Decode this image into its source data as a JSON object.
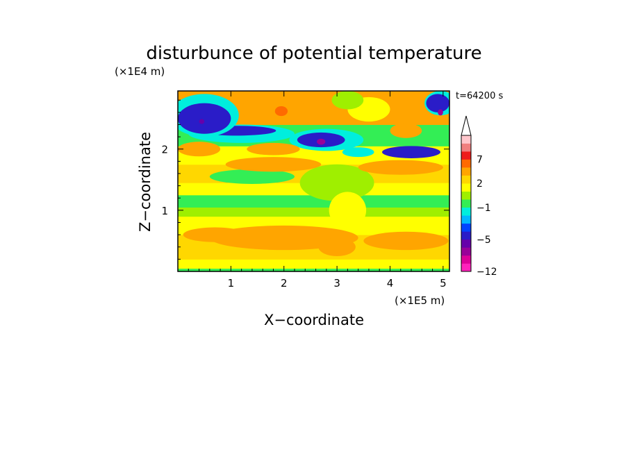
{
  "chart_data": {
    "type": "heatmap",
    "title": "disturbunce of potential temperature",
    "time_label": "t=64200 s",
    "xlabel": "X−coordinate",
    "ylabel": "Z−coordinate",
    "x_unit": "(×1E5 m)",
    "y_unit": "(×1E4 m)",
    "xlim": [
      0,
      5.12
    ],
    "ylim": [
      0,
      2.95
    ],
    "x_ticks": [
      1,
      2,
      3,
      4,
      5
    ],
    "x_tick_labels": [
      "1",
      "2",
      "3",
      "4",
      "5"
    ],
    "y_ticks": [
      1,
      2
    ],
    "y_tick_labels": [
      "1",
      "2"
    ],
    "colorbar": {
      "levels": [
        -12,
        -11,
        -9,
        -7,
        -5,
        -4,
        -3,
        -2,
        -1,
        0,
        1,
        2,
        3,
        5,
        7,
        9,
        11
      ],
      "colors": [
        "#ff22bb",
        "#dd0099",
        "#990099",
        "#6600aa",
        "#2a1cc8",
        "#0044ff",
        "#00b8ff",
        "#00eedd",
        "#33ee55",
        "#9fef00",
        "#ffff00",
        "#ffd700",
        "#ffa500",
        "#ff6a00",
        "#ee1c1c",
        "#f07f7f",
        "#ffc6cc"
      ],
      "extend": "max",
      "labels": [
        "7",
        "2",
        "−1",
        "−5",
        "−12"
      ],
      "label_values": [
        7,
        2,
        -1,
        -5,
        -12
      ]
    },
    "bands": [
      {
        "z": [
          0.0,
          0.05
        ],
        "value": -0.5
      },
      {
        "z": [
          0.05,
          0.2
        ],
        "value": 1.5
      },
      {
        "z": [
          0.2,
          0.6
        ],
        "value": 2.5
      },
      {
        "z": [
          0.6,
          0.9
        ],
        "value": 1.5
      },
      {
        "z": [
          0.9,
          1.05
        ],
        "value": 0.5
      },
      {
        "z": [
          1.05,
          1.25
        ],
        "value": -0.5
      },
      {
        "z": [
          1.25,
          1.45
        ],
        "value": 1.5
      },
      {
        "z": [
          1.45,
          1.75
        ],
        "value": 2.5
      },
      {
        "z": [
          1.75,
          2.05
        ],
        "value": 1.5
      },
      {
        "z": [
          2.05,
          2.4
        ],
        "value": -0.5
      },
      {
        "z": [
          2.4,
          2.95
        ],
        "value": 3.0
      }
    ],
    "features": [
      {
        "x": 2.0,
        "z": 0.55,
        "rx": 1.4,
        "rz": 0.2,
        "value": 4.0
      },
      {
        "x": 4.3,
        "z": 0.5,
        "rx": 0.8,
        "rz": 0.15,
        "value": 4.0
      },
      {
        "x": 3.0,
        "z": 0.4,
        "rx": 0.35,
        "rz": 0.15,
        "value": 4.0
      },
      {
        "x": 0.7,
        "z": 0.6,
        "rx": 0.6,
        "rz": 0.12,
        "value": 4.0
      },
      {
        "x": 3.0,
        "z": 1.45,
        "rx": 0.7,
        "rz": 0.3,
        "value": 0.5
      },
      {
        "x": 1.4,
        "z": 1.55,
        "rx": 0.8,
        "rz": 0.12,
        "value": -0.5
      },
      {
        "x": 0.4,
        "z": 2.0,
        "rx": 0.4,
        "rz": 0.12,
        "value": 4.0
      },
      {
        "x": 1.8,
        "z": 1.75,
        "rx": 0.9,
        "rz": 0.12,
        "value": 4.0
      },
      {
        "x": 4.2,
        "z": 1.7,
        "rx": 0.8,
        "rz": 0.12,
        "value": 4.0
      },
      {
        "x": 1.2,
        "z": 2.25,
        "rx": 1.0,
        "rz": 0.15,
        "value": -1.5
      },
      {
        "x": 1.1,
        "z": 2.3,
        "rx": 0.75,
        "rz": 0.08,
        "value": -4.5
      },
      {
        "x": 2.8,
        "z": 2.15,
        "rx": 0.7,
        "rz": 0.18,
        "value": -1.5
      },
      {
        "x": 2.7,
        "z": 2.15,
        "rx": 0.45,
        "rz": 0.12,
        "value": -4.5
      },
      {
        "x": 2.7,
        "z": 2.12,
        "rx": 0.08,
        "rz": 0.05,
        "value": -8.0
      },
      {
        "x": 4.4,
        "z": 1.95,
        "rx": 0.55,
        "rz": 0.1,
        "value": -4.5
      },
      {
        "x": 3.4,
        "z": 1.95,
        "rx": 0.3,
        "rz": 0.08,
        "value": -1.5
      },
      {
        "x": 1.8,
        "z": 2.0,
        "rx": 0.5,
        "rz": 0.1,
        "value": 4.0
      },
      {
        "x": 0.5,
        "z": 2.55,
        "rx": 0.65,
        "rz": 0.35,
        "value": -1.5
      },
      {
        "x": 0.5,
        "z": 2.5,
        "rx": 0.5,
        "rz": 0.25,
        "value": -4.5
      },
      {
        "x": 0.45,
        "z": 2.45,
        "rx": 0.05,
        "rz": 0.04,
        "value": -6.0
      },
      {
        "x": 4.95,
        "z": 2.75,
        "rx": 0.3,
        "rz": 0.2,
        "value": -1.5
      },
      {
        "x": 4.9,
        "z": 2.75,
        "rx": 0.22,
        "rz": 0.15,
        "value": -4.5
      },
      {
        "x": 4.95,
        "z": 2.6,
        "rx": 0.05,
        "rz": 0.05,
        "value": -8.0
      },
      {
        "x": 1.8,
        "z": 2.65,
        "rx": 0.6,
        "rz": 0.25,
        "value": 4.0
      },
      {
        "x": 1.95,
        "z": 2.62,
        "rx": 0.12,
        "rz": 0.08,
        "value": 6.0
      },
      {
        "x": 2.7,
        "z": 2.6,
        "rx": 0.45,
        "rz": 0.2,
        "value": 4.0
      },
      {
        "x": 4.3,
        "z": 2.3,
        "rx": 0.3,
        "rz": 0.12,
        "value": 4.0
      },
      {
        "x": 3.6,
        "z": 2.65,
        "rx": 0.4,
        "rz": 0.2,
        "value": 1.5
      },
      {
        "x": 3.2,
        "z": 2.8,
        "rx": 0.3,
        "rz": 0.15,
        "value": 0.5
      },
      {
        "x": 3.2,
        "z": 1.0,
        "rx": 0.35,
        "rz": 0.3,
        "value": 1.5
      }
    ]
  }
}
